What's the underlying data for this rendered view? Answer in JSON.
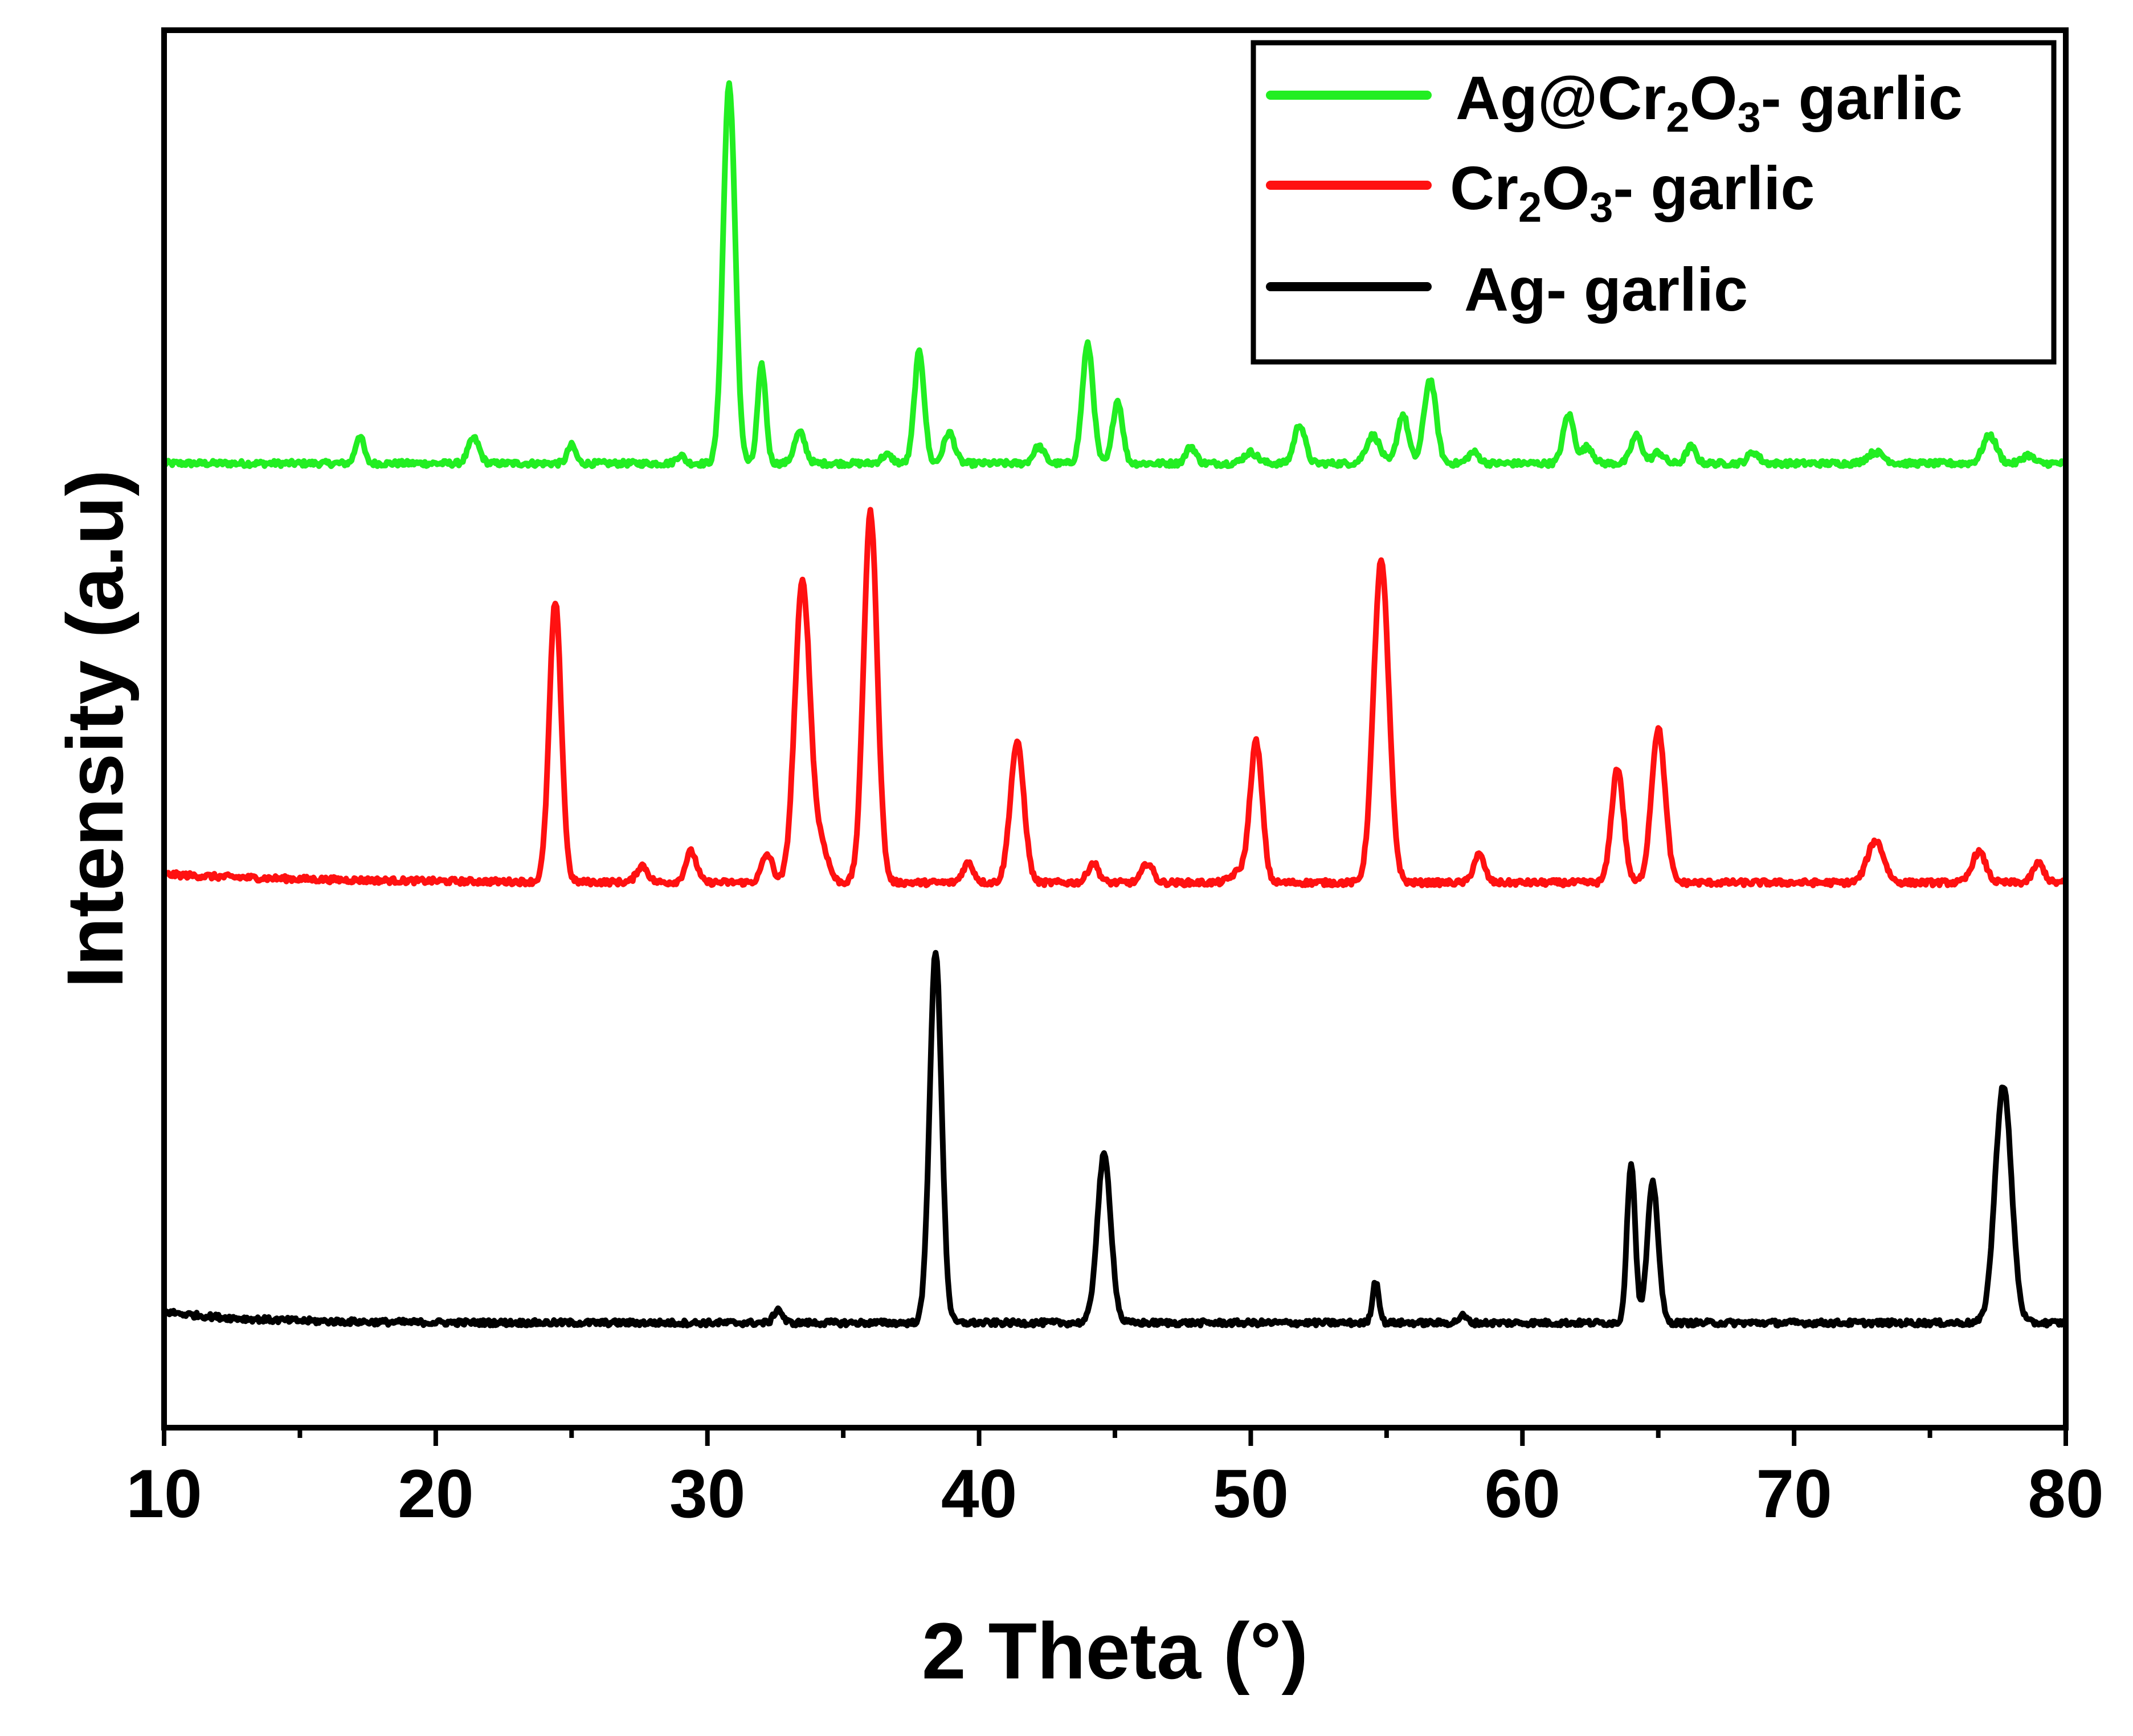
{
  "chart_data": {
    "type": "line",
    "title": "",
    "xlabel": "2 Theta (°)",
    "ylabel": "Intensity (a.u)",
    "xlim": [
      10,
      80
    ],
    "ylim": [
      0,
      1000
    ],
    "x_ticks": [
      "10",
      "20",
      "30",
      "40",
      "50",
      "60",
      "70",
      "80"
    ],
    "legend_position": "top-right",
    "series": [
      {
        "name": "Ag@Cr2O3- garlic",
        "color": "#22ee22",
        "legend_parts": [
          {
            "t": "Ag@Cr",
            "sub": false
          },
          {
            "t": "2",
            "sub": true
          },
          {
            "t": "O",
            "sub": false
          },
          {
            "t": "3",
            "sub": true
          },
          {
            "t": "- garlic",
            "sub": false
          }
        ],
        "baseline": 690,
        "peaks": [
          [
            17.2,
            20,
            0.15
          ],
          [
            21.4,
            18,
            0.2
          ],
          [
            25.0,
            13,
            0.15
          ],
          [
            29.0,
            6,
            0.15
          ],
          [
            30.8,
            272,
            0.22
          ],
          [
            32.0,
            70,
            0.15
          ],
          [
            33.4,
            22,
            0.2
          ],
          [
            36.6,
            6,
            0.2
          ],
          [
            37.8,
            80,
            0.18
          ],
          [
            38.9,
            22,
            0.2
          ],
          [
            42.2,
            12,
            0.2
          ],
          [
            44.0,
            85,
            0.2
          ],
          [
            45.1,
            45,
            0.18
          ],
          [
            47.8,
            12,
            0.18
          ],
          [
            50.0,
            8,
            0.25
          ],
          [
            51.8,
            28,
            0.2
          ],
          [
            54.5,
            20,
            0.25
          ],
          [
            55.6,
            35,
            0.2
          ],
          [
            56.6,
            60,
            0.22
          ],
          [
            58.2,
            8,
            0.2
          ],
          [
            61.7,
            35,
            0.2
          ],
          [
            62.4,
            12,
            0.2
          ],
          [
            64.2,
            20,
            0.2
          ],
          [
            65.0,
            8,
            0.2
          ],
          [
            66.2,
            12,
            0.18
          ],
          [
            68.5,
            8,
            0.2
          ],
          [
            73.0,
            8,
            0.3
          ],
          [
            77.2,
            20,
            0.25
          ],
          [
            78.6,
            6,
            0.2
          ]
        ]
      },
      {
        "name": "Cr2O3- garlic",
        "color": "#ff1111",
        "legend_parts": [
          {
            "t": "Cr",
            "sub": false
          },
          {
            "t": "2",
            "sub": true
          },
          {
            "t": "O",
            "sub": false
          },
          {
            "t": "3",
            "sub": true
          },
          {
            "t": "- garlic",
            "sub": false
          }
        ],
        "baseline": 390,
        "peaks": [
          [
            24.4,
            200,
            0.22
          ],
          [
            27.6,
            12,
            0.2
          ],
          [
            29.4,
            22,
            0.2
          ],
          [
            32.2,
            20,
            0.2
          ],
          [
            33.5,
            215,
            0.28
          ],
          [
            34.2,
            25,
            0.25
          ],
          [
            36.0,
            265,
            0.25
          ],
          [
            39.6,
            14,
            0.2
          ],
          [
            41.4,
            100,
            0.25
          ],
          [
            44.2,
            14,
            0.2
          ],
          [
            46.2,
            14,
            0.2
          ],
          [
            49.6,
            8,
            0.3
          ],
          [
            50.2,
            100,
            0.22
          ],
          [
            54.8,
            230,
            0.28
          ],
          [
            58.4,
            20,
            0.2
          ],
          [
            63.5,
            82,
            0.22
          ],
          [
            65.0,
            110,
            0.25
          ],
          [
            73.0,
            30,
            0.3
          ],
          [
            76.8,
            22,
            0.25
          ],
          [
            79.0,
            14,
            0.2
          ]
        ]
      },
      {
        "name": "Ag- garlic",
        "color": "#000000",
        "legend_parts": [
          {
            "t": "Ag- garlic",
            "sub": false
          }
        ],
        "baseline": 75,
        "peaks": [
          [
            32.6,
            10,
            0.15
          ],
          [
            38.4,
            265,
            0.22
          ],
          [
            44.6,
            120,
            0.25
          ],
          [
            54.6,
            30,
            0.12
          ],
          [
            57.8,
            5,
            0.15
          ],
          [
            64.0,
            115,
            0.15
          ],
          [
            64.8,
            100,
            0.2
          ],
          [
            77.7,
            170,
            0.3
          ]
        ]
      }
    ]
  }
}
